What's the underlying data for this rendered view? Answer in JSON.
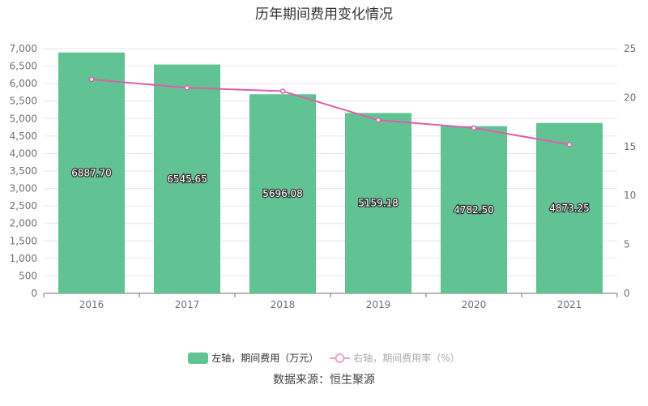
{
  "chart_data": {
    "type": "bar+line",
    "title": "历年期间费用变化情况",
    "categories": [
      "2016",
      "2017",
      "2018",
      "2019",
      "2020",
      "2021"
    ],
    "series": [
      {
        "name": "左轴，期间费用（万元）",
        "type": "bar",
        "axis": "left",
        "values": [
          6887.7,
          6545.65,
          5696.08,
          5159.18,
          4782.5,
          4873.25
        ],
        "labels": [
          "6887.70",
          "6545.65",
          "5696.08",
          "5159.18",
          "4782.50",
          "4873.25"
        ],
        "color": "#61c394"
      },
      {
        "name": "右轴，期间费用率（%）",
        "type": "line",
        "axis": "right",
        "values": [
          21.85,
          21.0,
          20.65,
          17.7,
          16.9,
          15.2
        ],
        "color": "#dd5fa8"
      }
    ],
    "left_axis": {
      "range": [
        0,
        7000
      ],
      "ticks": [
        "0",
        "500",
        "1,000",
        "1,500",
        "2,000",
        "2,500",
        "3,000",
        "3,500",
        "4,000",
        "4,500",
        "5,000",
        "5,500",
        "6,000",
        "6,500",
        "7,000"
      ]
    },
    "right_axis": {
      "range": [
        0,
        25
      ],
      "ticks": [
        "0",
        "5",
        "10",
        "15",
        "20",
        "25"
      ]
    },
    "grid": true,
    "legend_placement": "bottom",
    "source": "数据来源：恒生聚源"
  }
}
